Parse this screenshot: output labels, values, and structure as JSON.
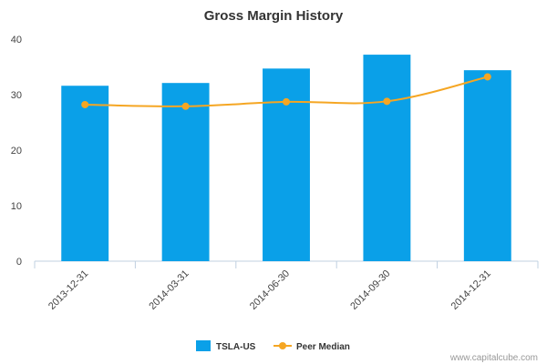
{
  "chart_data": {
    "type": "bar",
    "title": "Gross Margin History",
    "categories": [
      "2013-12-31",
      "2014-03-31",
      "2014-06-30",
      "2014-09-30",
      "2014-12-31"
    ],
    "series": [
      {
        "name": "TSLA-US",
        "type": "bar",
        "values": [
          31.6,
          32.1,
          34.7,
          37.2,
          34.4
        ]
      },
      {
        "name": "Peer Median",
        "type": "line",
        "values": [
          28.2,
          27.9,
          28.7,
          28.8,
          33.2
        ]
      }
    ],
    "ylim": [
      0,
      40
    ],
    "yticks": [
      0,
      10,
      20,
      30,
      40
    ],
    "grid": false,
    "legend": "bottom-center"
  },
  "colors": {
    "bar": "#0aa0e8",
    "line": "#f5a623"
  },
  "credit": "www.capitalcube.com"
}
